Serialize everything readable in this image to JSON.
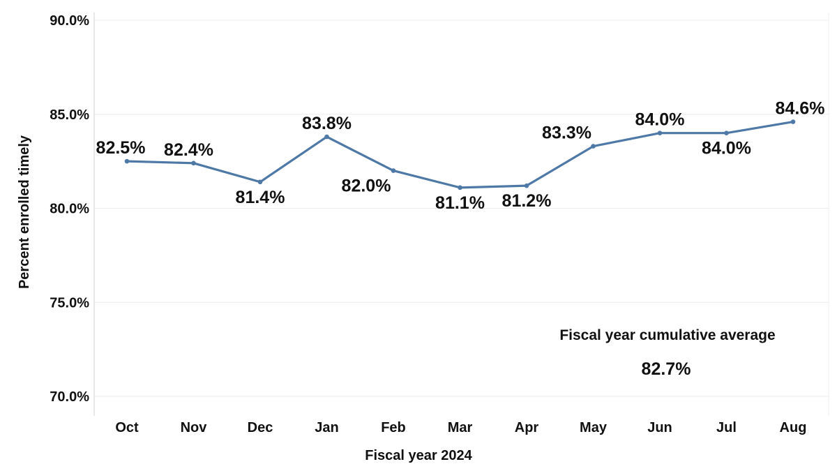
{
  "chart_data": {
    "type": "line",
    "categories": [
      "Oct",
      "Nov",
      "Dec",
      "Jan",
      "Feb",
      "Mar",
      "Apr",
      "May",
      "Jun",
      "Jul",
      "Aug"
    ],
    "series": [
      {
        "values": [
          82.5,
          82.4,
          81.4,
          83.8,
          82.0,
          81.1,
          81.2,
          83.3,
          84.0,
          84.0,
          84.6
        ],
        "data_labels": [
          "82.5%",
          "82.4%",
          "81.4%",
          "83.8%",
          "82.0%",
          "81.1%",
          "81.2%",
          "83.3%",
          "84.0%",
          "84.0%",
          "84.6%"
        ],
        "color": "#4e79a7"
      }
    ],
    "xlabel": "Fiscal year 2024",
    "ylabel": "Percent enrolled timely",
    "ylim": [
      70,
      90
    ],
    "yticks": [
      90,
      85,
      80,
      75,
      70
    ],
    "ytick_labels": [
      "90.0%",
      "85.0%",
      "80.0%",
      "75.0%",
      "70.0%"
    ],
    "grid": true,
    "annotation": {
      "title": "Fiscal year cumulative average",
      "value": "82.7%"
    }
  }
}
